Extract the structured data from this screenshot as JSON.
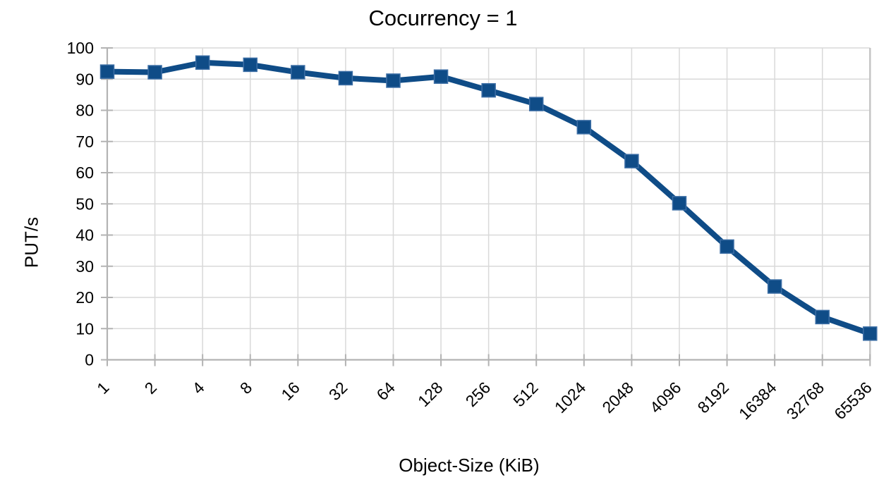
{
  "chart_data": {
    "type": "line",
    "title": "Cocurrency = 1",
    "xlabel": "Object-Size (KiB)",
    "ylabel": "PUT/s",
    "categories": [
      "1",
      "2",
      "4",
      "8",
      "16",
      "32",
      "64",
      "128",
      "256",
      "512",
      "1024",
      "2048",
      "4096",
      "8192",
      "16384",
      "32768",
      "65536"
    ],
    "series": [
      {
        "name": "PUT/s",
        "values": [
          92.4,
          92.2,
          95.3,
          94.6,
          92.2,
          90.3,
          89.5,
          90.8,
          86.4,
          82.0,
          74.6,
          63.7,
          50.2,
          36.3,
          23.5,
          13.7,
          8.4
        ]
      }
    ],
    "ylim": [
      0,
      100
    ],
    "ytick_step": 10,
    "grid": true,
    "legend_position": "none",
    "marker": "square",
    "x_label_rotation_deg": -45,
    "colors": {
      "series": "#0f4c87",
      "marker_edge": "#3c6ea5",
      "gridline": "#d9d9d9",
      "plot_right_edge": "#c3c3c3",
      "axis": "#b3b3b3",
      "text": "#000000",
      "background": "#ffffff"
    }
  }
}
